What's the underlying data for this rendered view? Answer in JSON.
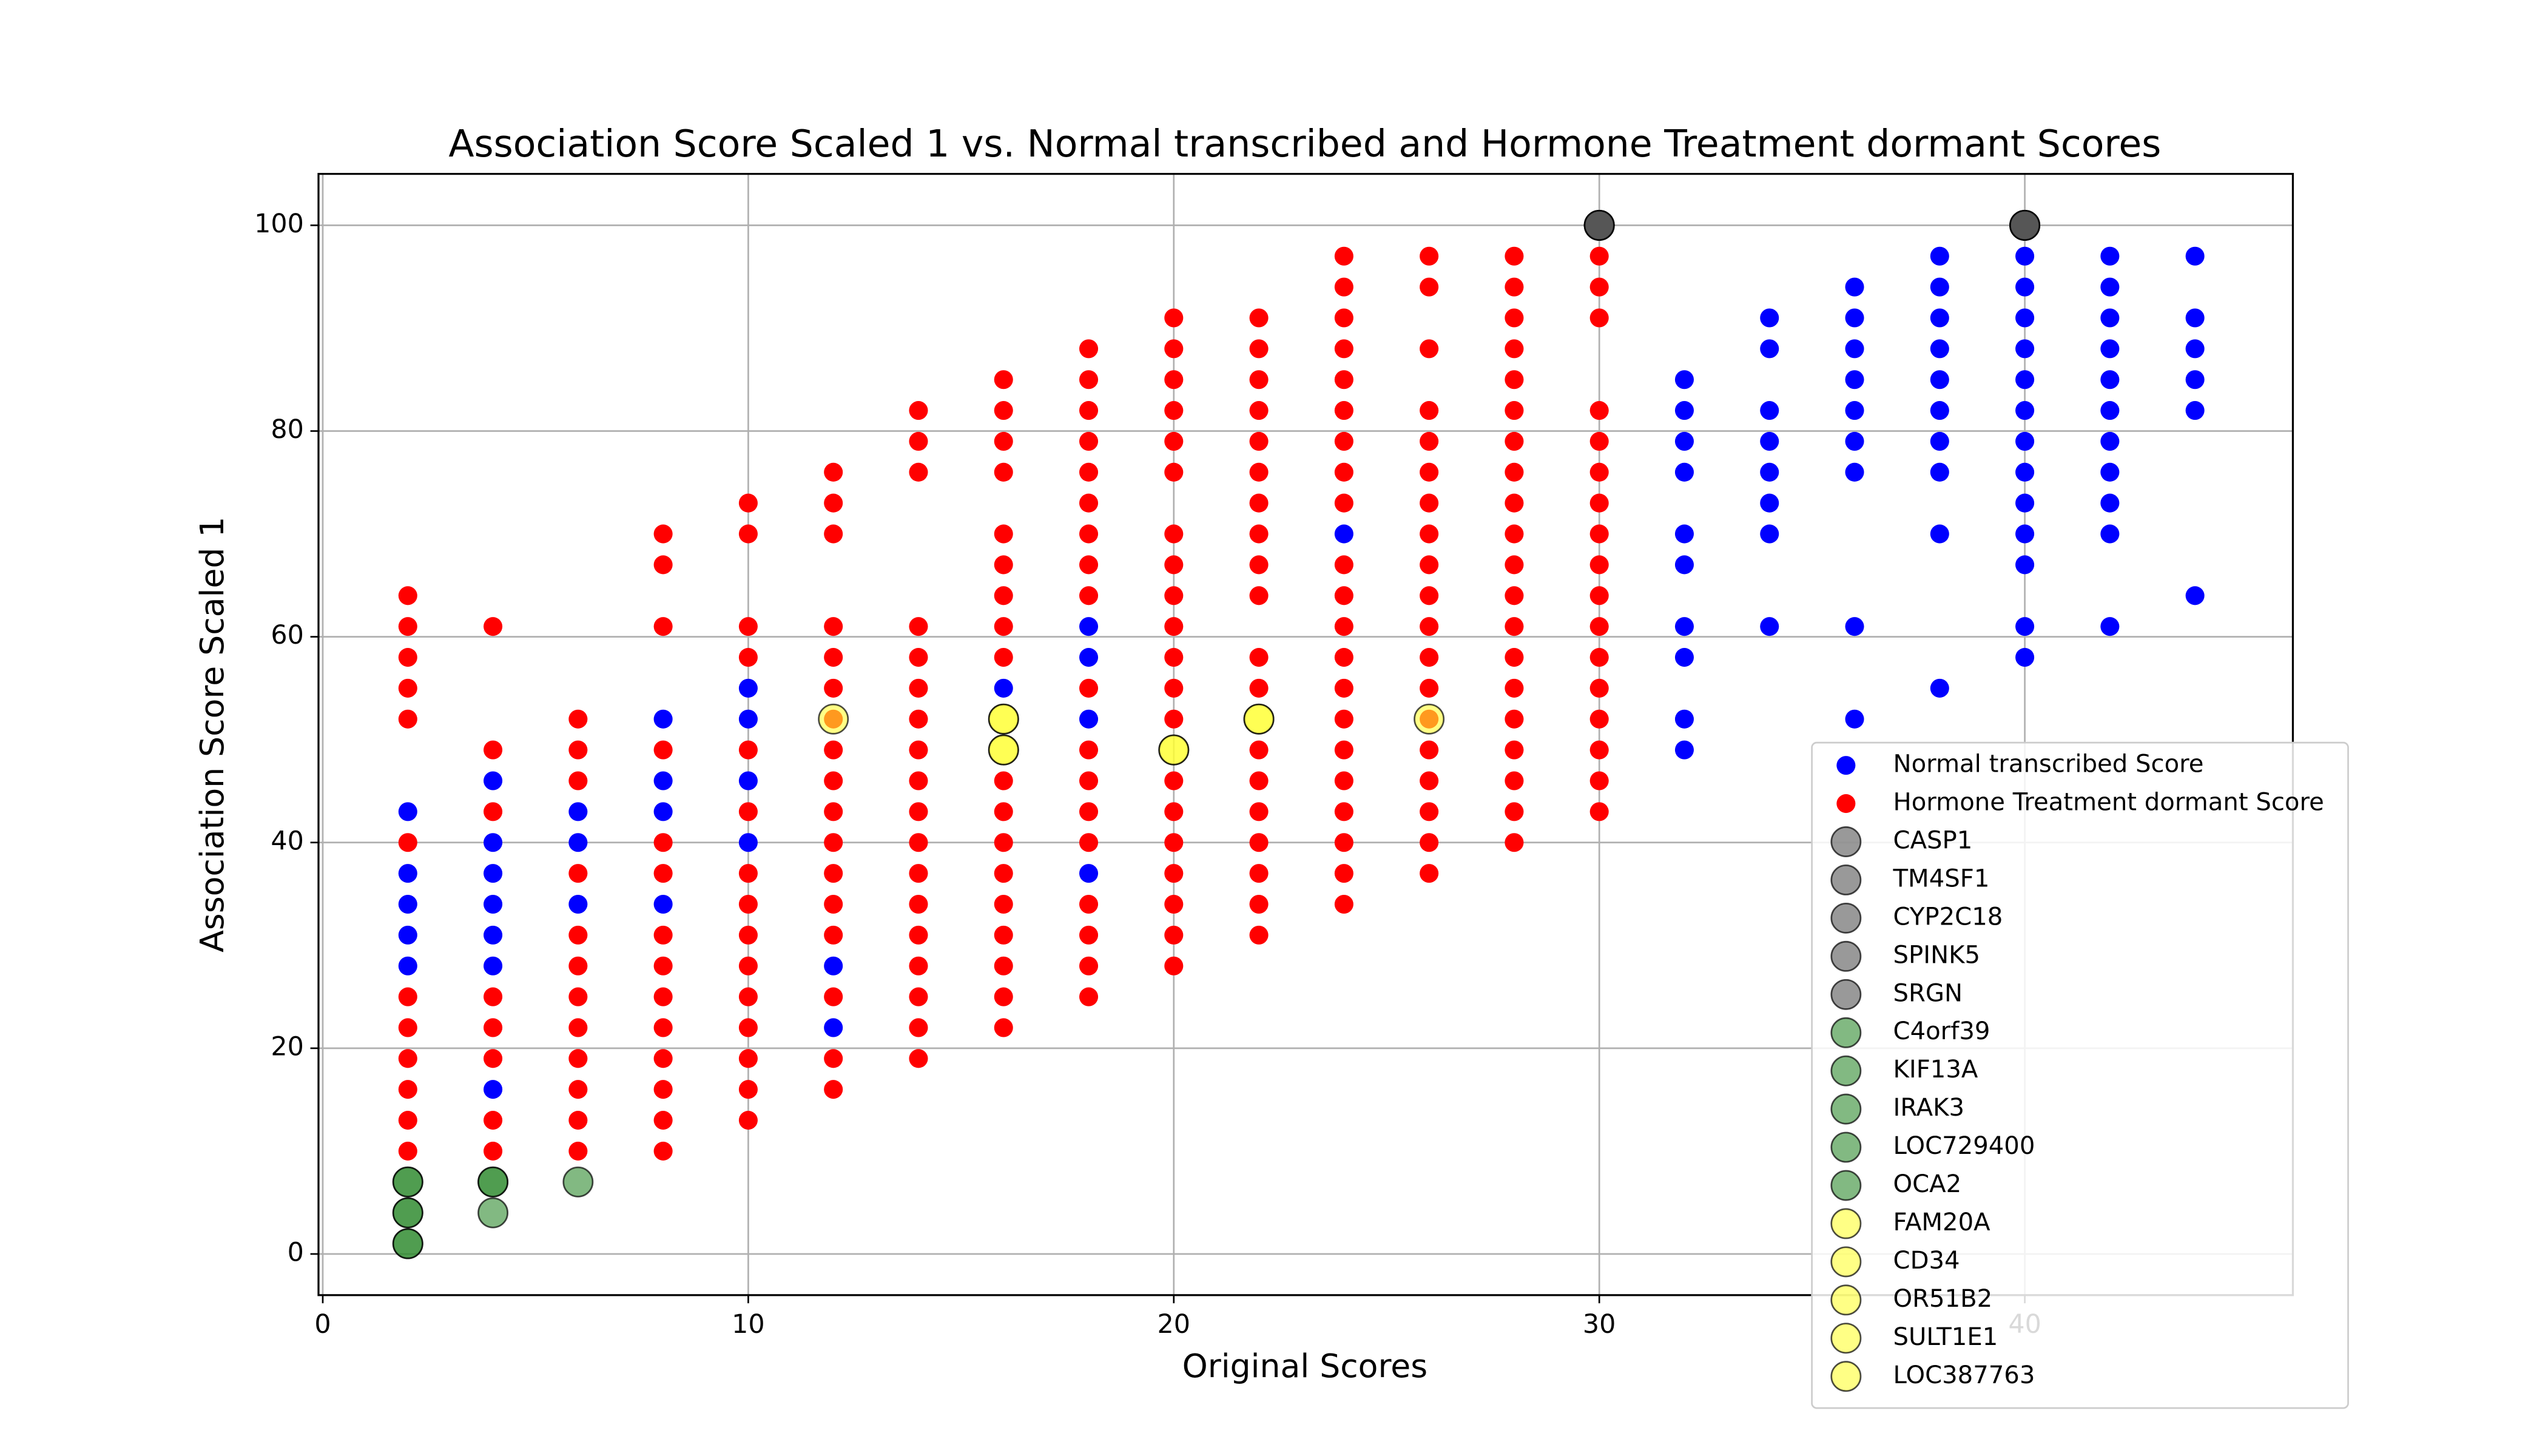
{
  "chart_data": {
    "type": "scatter",
    "title": "Association Score Scaled 1 vs. Normal transcribed and Hormone Treatment dormant Scores",
    "x_label": "Original Scores",
    "y_label": "Association Score Scaled 1",
    "xlim": [
      -0.1,
      46.3
    ],
    "ylim": [
      -4,
      105
    ],
    "xticks": [
      0,
      10,
      20,
      30,
      40
    ],
    "yticks": [
      0,
      20,
      40,
      60,
      80,
      100
    ],
    "grid": true,
    "legend": "lower right",
    "series": [
      {
        "name": "Normal transcribed Score",
        "color": "#0000ff",
        "x": [
          2,
          2,
          2,
          2,
          2,
          4,
          4,
          4,
          4,
          4,
          4,
          4,
          6,
          6,
          6,
          8,
          8,
          8,
          8,
          10,
          10,
          10,
          10,
          12,
          12,
          16,
          18,
          18,
          18,
          18,
          24,
          32,
          32,
          32,
          32,
          32,
          32,
          32,
          32,
          32,
          32,
          34,
          34,
          34,
          34,
          34,
          34,
          34,
          34,
          36,
          36,
          36,
          36,
          36,
          36,
          36,
          36,
          36,
          38,
          38,
          38,
          38,
          38,
          38,
          38,
          38,
          38,
          38,
          40,
          40,
          40,
          40,
          40,
          40,
          40,
          40,
          40,
          40,
          40,
          40,
          40,
          42,
          42,
          42,
          42,
          42,
          42,
          42,
          42,
          42,
          42,
          42,
          44,
          44,
          44,
          44,
          44,
          44
        ],
        "values": [
          43,
          37,
          34,
          31,
          28,
          46,
          40,
          37,
          34,
          31,
          28,
          16,
          43,
          40,
          34,
          52,
          46,
          43,
          34,
          55,
          52,
          46,
          40,
          28,
          22,
          55,
          61,
          58,
          52,
          37,
          70,
          85,
          82,
          79,
          76,
          70,
          67,
          61,
          58,
          52,
          49,
          91,
          88,
          82,
          79,
          76,
          73,
          70,
          61,
          94,
          91,
          88,
          85,
          82,
          79,
          76,
          61,
          52,
          97,
          94,
          91,
          88,
          85,
          82,
          79,
          76,
          70,
          55,
          97,
          94,
          91,
          88,
          85,
          82,
          79,
          76,
          73,
          70,
          67,
          61,
          58,
          97,
          94,
          91,
          88,
          85,
          82,
          79,
          76,
          73,
          70,
          61,
          97,
          91,
          88,
          85,
          82,
          64
        ]
      },
      {
        "name": "Hormone Treatment dormant Score",
        "color": "#ff0000",
        "x": [
          2,
          2,
          2,
          2,
          2,
          2,
          2,
          2,
          2,
          2,
          2,
          2,
          4,
          4,
          4,
          4,
          4,
          4,
          4,
          4,
          6,
          6,
          6,
          6,
          6,
          6,
          6,
          6,
          6,
          6,
          6,
          6,
          8,
          8,
          8,
          8,
          8,
          8,
          8,
          8,
          8,
          8,
          8,
          8,
          8,
          8,
          10,
          10,
          10,
          10,
          10,
          10,
          10,
          10,
          10,
          10,
          10,
          10,
          10,
          10,
          10,
          12,
          12,
          12,
          12,
          12,
          12,
          12,
          12,
          12,
          12,
          12,
          12,
          12,
          12,
          12,
          12,
          12,
          14,
          14,
          14,
          14,
          14,
          14,
          14,
          14,
          14,
          14,
          14,
          14,
          14,
          14,
          14,
          14,
          14,
          14,
          16,
          16,
          16,
          16,
          16,
          16,
          16,
          16,
          16,
          16,
          16,
          16,
          16,
          16,
          16,
          16,
          16,
          16,
          18,
          18,
          18,
          18,
          18,
          18,
          18,
          18,
          18,
          18,
          18,
          18,
          18,
          18,
          18,
          18,
          18,
          18,
          20,
          20,
          20,
          20,
          20,
          20,
          20,
          20,
          20,
          20,
          20,
          20,
          20,
          20,
          20,
          20,
          20,
          20,
          20,
          20,
          22,
          22,
          22,
          22,
          22,
          22,
          22,
          22,
          22,
          22,
          22,
          22,
          22,
          22,
          22,
          22,
          22,
          22,
          22,
          24,
          24,
          24,
          24,
          24,
          24,
          24,
          24,
          24,
          24,
          24,
          24,
          24,
          24,
          24,
          24,
          24,
          24,
          24,
          24,
          24,
          26,
          26,
          26,
          26,
          26,
          26,
          26,
          26,
          26,
          26,
          26,
          26,
          26,
          26,
          26,
          26,
          26,
          26,
          26,
          28,
          28,
          28,
          28,
          28,
          28,
          28,
          28,
          28,
          28,
          28,
          28,
          28,
          28,
          28,
          28,
          28,
          28,
          28,
          28,
          30,
          30,
          30,
          30,
          30,
          30,
          30,
          30,
          30,
          30,
          30,
          30,
          30,
          30,
          30,
          30,
          30
        ],
        "values": [
          64,
          61,
          58,
          55,
          52,
          40,
          25,
          22,
          19,
          16,
          13,
          10,
          61,
          49,
          43,
          25,
          22,
          19,
          13,
          10,
          52,
          49,
          46,
          37,
          31,
          28,
          25,
          22,
          19,
          16,
          13,
          10,
          70,
          67,
          61,
          49,
          40,
          37,
          31,
          28,
          25,
          22,
          19,
          16,
          13,
          10,
          73,
          70,
          61,
          58,
          49,
          43,
          37,
          34,
          31,
          28,
          25,
          22,
          19,
          16,
          13,
          76,
          73,
          70,
          61,
          58,
          55,
          52,
          49,
          46,
          43,
          40,
          37,
          34,
          31,
          25,
          19,
          16,
          82,
          79,
          76,
          61,
          58,
          55,
          52,
          49,
          46,
          43,
          40,
          37,
          34,
          31,
          28,
          25,
          22,
          19,
          85,
          82,
          79,
          76,
          70,
          67,
          64,
          61,
          58,
          46,
          43,
          40,
          37,
          34,
          31,
          28,
          25,
          22,
          88,
          85,
          82,
          79,
          76,
          73,
          70,
          67,
          64,
          55,
          49,
          46,
          43,
          40,
          34,
          31,
          28,
          25,
          91,
          88,
          85,
          82,
          79,
          76,
          70,
          67,
          64,
          61,
          58,
          55,
          52,
          46,
          43,
          40,
          37,
          34,
          31,
          28,
          91,
          88,
          85,
          82,
          79,
          76,
          73,
          70,
          67,
          64,
          58,
          55,
          49,
          46,
          43,
          40,
          37,
          34,
          31,
          97,
          94,
          91,
          88,
          85,
          82,
          79,
          76,
          73,
          67,
          64,
          61,
          58,
          55,
          52,
          49,
          46,
          43,
          40,
          37,
          34,
          97,
          94,
          88,
          82,
          79,
          76,
          73,
          70,
          67,
          64,
          61,
          58,
          55,
          52,
          49,
          46,
          43,
          40,
          37,
          97,
          94,
          91,
          88,
          85,
          82,
          79,
          76,
          73,
          70,
          67,
          64,
          61,
          58,
          55,
          52,
          49,
          46,
          43,
          40,
          97,
          94,
          91,
          82,
          79,
          76,
          73,
          70,
          67,
          64,
          61,
          58,
          55,
          52,
          49,
          46,
          43
        ]
      },
      {
        "name": "CASP1",
        "color": "#555555",
        "x": [
          30,
          40
        ],
        "values": [
          100,
          100
        ]
      },
      {
        "name": "TM4SF1",
        "color": "#555555",
        "x": [
          30,
          40
        ],
        "values": [
          100,
          100
        ]
      },
      {
        "name": "CYP2C18",
        "color": "#555555",
        "x": [
          30,
          40
        ],
        "values": [
          100,
          100
        ]
      },
      {
        "name": "SPINK5",
        "color": "#555555",
        "x": [
          30,
          40
        ],
        "values": [
          100,
          100
        ]
      },
      {
        "name": "SRGN",
        "color": "#555555",
        "x": [
          30,
          40
        ],
        "values": [
          100,
          100
        ]
      },
      {
        "name": "C4orf39",
        "color": "#2e8b2e",
        "x": [
          2,
          6
        ],
        "values": [
          7,
          7
        ]
      },
      {
        "name": "KIF13A",
        "color": "#2e8b2e",
        "x": [
          2,
          4
        ],
        "values": [
          4,
          4
        ]
      },
      {
        "name": "IRAK3",
        "color": "#2e8b2e",
        "x": [
          2,
          4
        ],
        "values": [
          1,
          7
        ]
      },
      {
        "name": "LOC729400",
        "color": "#2e8b2e",
        "x": [
          2,
          4
        ],
        "values": [
          7,
          7
        ]
      },
      {
        "name": "OCA2",
        "color": "#2e8b2e",
        "x": [
          2,
          2
        ],
        "values": [
          1,
          4
        ]
      },
      {
        "name": "FAM20A",
        "color": "#ffff33",
        "x": [
          12,
          16
        ],
        "values": [
          52,
          52
        ]
      },
      {
        "name": "CD34",
        "color": "#ffff33",
        "x": [
          16,
          20
        ],
        "values": [
          49,
          49
        ]
      },
      {
        "name": "OR51B2",
        "color": "#ffff33",
        "x": [
          22,
          26
        ],
        "values": [
          52,
          52
        ]
      },
      {
        "name": "SULT1E1",
        "color": "#ffff33",
        "x": [
          16,
          22
        ],
        "values": [
          52,
          52
        ]
      },
      {
        "name": "LOC387763",
        "color": "#ffff33",
        "x": [
          16,
          20
        ],
        "values": [
          49,
          49
        ]
      }
    ]
  }
}
